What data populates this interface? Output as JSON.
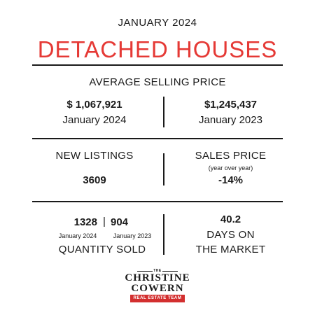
{
  "header": {
    "date": "JANUARY 2024",
    "title": "DETACHED HOUSES"
  },
  "avg_price": {
    "label": "AVERAGE SELLING PRICE",
    "current_value": "$ 1,067,921",
    "current_period": "January 2024",
    "previous_value": "$1,245,437",
    "previous_period": "January 2023"
  },
  "listings": {
    "label": "NEW LISTINGS",
    "value": "3609"
  },
  "sales_price": {
    "label": "SALES PRICE",
    "sublabel": "(year over year)",
    "value": "-14%"
  },
  "quantity_sold": {
    "current_value": "1328",
    "separator": "|",
    "previous_value": "904",
    "current_period": "January 2024",
    "previous_period": "January 2023",
    "label": "QUANTITY SOLD"
  },
  "days_on_market": {
    "value": "40.2",
    "label_line1": "DAYS ON",
    "label_line2": "THE MARKET"
  },
  "logo": {
    "the": "THE",
    "line1": "CHRISTINE",
    "line2": "COWERN",
    "tagline": "REAL ESTATE TEAM",
    "brand_color": "#d32f2f"
  },
  "colors": {
    "accent": "#e53935",
    "text": "#1a1a1a",
    "background": "#ffffff"
  }
}
